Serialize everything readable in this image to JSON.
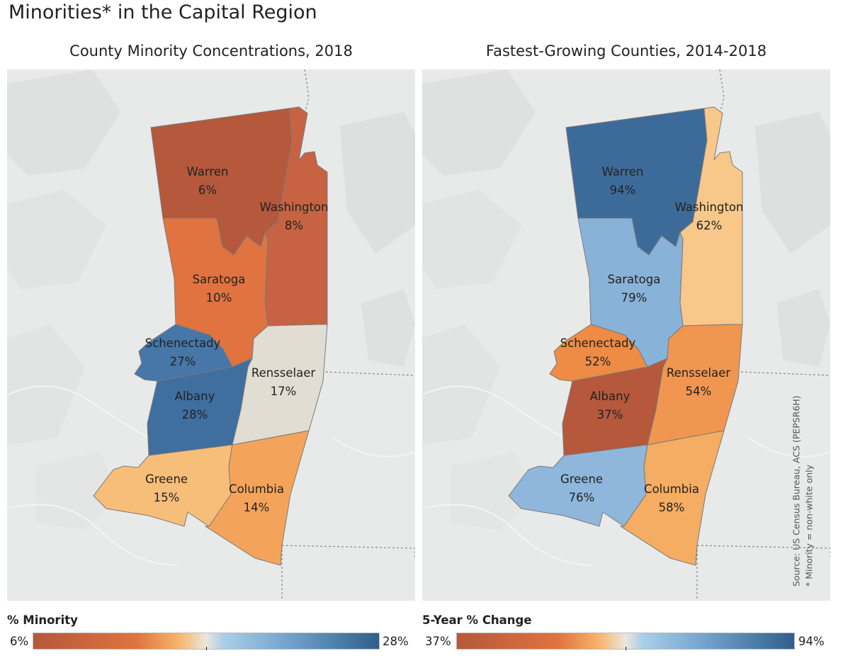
{
  "title": "Minorities* in the Capital Region",
  "colors": {
    "map_background": "#e8e9e9",
    "scale_low": "#b35a3a",
    "scale_mid_low": "#f59a4d",
    "scale_mid": "#e5e0d2",
    "scale_mid_high": "#a9cbe6",
    "scale_high": "#2f5f8a"
  },
  "maps": [
    {
      "title": "County Minority Concentrations, 2018",
      "counties": [
        {
          "name": "Warren",
          "value": "6%",
          "color": "#b5583c"
        },
        {
          "name": "Washington",
          "value": "8%",
          "color": "#c76343"
        },
        {
          "name": "Saratoga",
          "value": "10%",
          "color": "#e0733f"
        },
        {
          "name": "Schenectady",
          "value": "27%",
          "color": "#4776a8"
        },
        {
          "name": "Albany",
          "value": "28%",
          "color": "#3f6f9f"
        },
        {
          "name": "Rensselaer",
          "value": "17%",
          "color": "#e2ddd2"
        },
        {
          "name": "Greene",
          "value": "15%",
          "color": "#f7be7a"
        },
        {
          "name": "Columbia",
          "value": "14%",
          "color": "#f4a45a"
        }
      ],
      "legend": {
        "title": "% Minority",
        "min": "6%",
        "max": "28%"
      }
    },
    {
      "title": "Fastest-Growing Counties, 2014-2018",
      "counties": [
        {
          "name": "Warren",
          "value": "94%",
          "color": "#3d6b99"
        },
        {
          "name": "Washington",
          "value": "62%",
          "color": "#f8c88a"
        },
        {
          "name": "Saratoga",
          "value": "79%",
          "color": "#89b2d8"
        },
        {
          "name": "Schenectady",
          "value": "52%",
          "color": "#ee8b45"
        },
        {
          "name": "Albany",
          "value": "37%",
          "color": "#b5583c"
        },
        {
          "name": "Rensselaer",
          "value": "54%",
          "color": "#f09650"
        },
        {
          "name": "Greene",
          "value": "76%",
          "color": "#8fb7dc"
        },
        {
          "name": "Columbia",
          "value": "58%",
          "color": "#f4ad63"
        }
      ],
      "legend": {
        "title": "5-Year % Change",
        "min": "37%",
        "max": "94%"
      }
    }
  ],
  "source": {
    "line1": "Source: US Census Bureau, ACS (PEPSR6H)",
    "line2": "* Minority = non-white only"
  }
}
